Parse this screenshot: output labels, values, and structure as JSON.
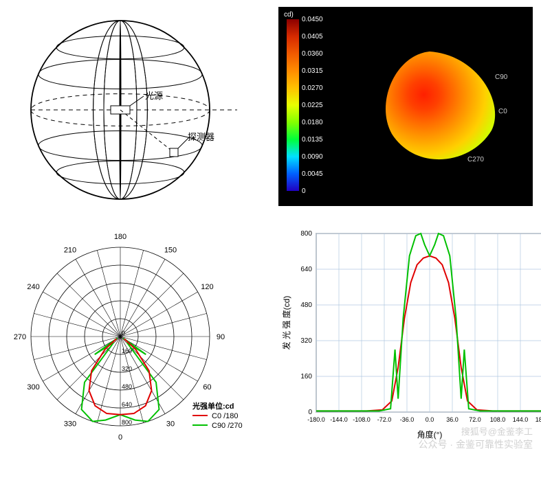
{
  "sphere": {
    "label_source": "光源",
    "label_detector": "探测器",
    "line_color": "#000000",
    "bg": "#ffffff"
  },
  "render3d": {
    "bg": "#000000",
    "scale_title": "cd)",
    "scale_values": [
      "0.0450",
      "0.0405",
      "0.0360",
      "0.0315",
      "0.0270",
      "0.0225",
      "0.0180",
      "0.0135",
      "0.0090",
      "0.0045",
      "0"
    ],
    "scale_colors": [
      "#8b0000",
      "#d62a00",
      "#f05a00",
      "#ff8c00",
      "#ffc100",
      "#e8ff00",
      "#84ff00",
      "#00ff3a",
      "#00e0ff",
      "#0060ff",
      "#2000c0"
    ],
    "lobe_gradient": [
      "#ff2000",
      "#ff4000",
      "#ff7000",
      "#ffa000",
      "#ffd000",
      "#cfff00"
    ],
    "axis_labels": [
      "C90",
      "C0",
      "C270"
    ],
    "axis_label_color": "#cccccc",
    "scale_text_color": "#ffffff"
  },
  "polar": {
    "angle_labels": [
      "180",
      "210",
      "240",
      "270",
      "300",
      "330",
      "0",
      "30",
      "60",
      "90",
      "120",
      "150"
    ],
    "angle_start_deg": 90,
    "radial_labels": [
      "160",
      "320",
      "480",
      "640",
      "800"
    ],
    "radial_max": 800,
    "grid_color": "#000000",
    "legend_title": "光强单位:cd",
    "legend": [
      {
        "label": "C0  /180",
        "color": "#e00000"
      },
      {
        "label": "C90 /270",
        "color": "#00c000"
      }
    ],
    "curve_c0": {
      "color": "#e00000",
      "points": [
        [
          -60,
          40
        ],
        [
          -50,
          180
        ],
        [
          -40,
          400
        ],
        [
          -30,
          560
        ],
        [
          -20,
          660
        ],
        [
          -10,
          700
        ],
        [
          0,
          700
        ],
        [
          10,
          700
        ],
        [
          20,
          660
        ],
        [
          30,
          560
        ],
        [
          40,
          400
        ],
        [
          50,
          180
        ],
        [
          60,
          40
        ]
      ]
    },
    "curve_c90": {
      "color": "#00c000",
      "points": [
        [
          -62,
          30
        ],
        [
          -55,
          280
        ],
        [
          -48,
          80
        ],
        [
          -38,
          520
        ],
        [
          -28,
          740
        ],
        [
          -18,
          800
        ],
        [
          -10,
          760
        ],
        [
          0,
          700
        ],
        [
          10,
          760
        ],
        [
          18,
          800
        ],
        [
          28,
          740
        ],
        [
          38,
          520
        ],
        [
          48,
          80
        ],
        [
          55,
          280
        ],
        [
          62,
          30
        ]
      ]
    }
  },
  "cartesian": {
    "xlabel": "角度(°)",
    "ylabel": "发 光 强 度(cd)",
    "xlim": [
      -180,
      180
    ],
    "xtick_step": 36,
    "ylim": [
      0,
      800
    ],
    "ytick_step": 160,
    "grid_color": "#b0c8e0",
    "axis_color": "#000000",
    "bg": "#ffffff",
    "curves": [
      {
        "color": "#e00000",
        "data": [
          [
            -180,
            5
          ],
          [
            -100,
            5
          ],
          [
            -75,
            10
          ],
          [
            -60,
            50
          ],
          [
            -50,
            200
          ],
          [
            -40,
            420
          ],
          [
            -30,
            580
          ],
          [
            -20,
            660
          ],
          [
            -10,
            690
          ],
          [
            0,
            700
          ],
          [
            10,
            690
          ],
          [
            20,
            660
          ],
          [
            30,
            580
          ],
          [
            40,
            420
          ],
          [
            50,
            200
          ],
          [
            60,
            50
          ],
          [
            75,
            10
          ],
          [
            100,
            5
          ],
          [
            180,
            5
          ]
        ]
      },
      {
        "color": "#00c000",
        "data": [
          [
            -180,
            5
          ],
          [
            -80,
            5
          ],
          [
            -62,
            15
          ],
          [
            -55,
            280
          ],
          [
            -50,
            60
          ],
          [
            -42,
            420
          ],
          [
            -32,
            700
          ],
          [
            -22,
            790
          ],
          [
            -14,
            800
          ],
          [
            -8,
            750
          ],
          [
            0,
            700
          ],
          [
            8,
            750
          ],
          [
            14,
            800
          ],
          [
            22,
            790
          ],
          [
            32,
            700
          ],
          [
            42,
            420
          ],
          [
            50,
            60
          ],
          [
            55,
            280
          ],
          [
            62,
            15
          ],
          [
            80,
            5
          ],
          [
            180,
            5
          ]
        ]
      }
    ]
  },
  "watermarks": {
    "line1": "公众号 · 金鉴可靠性实验室",
    "line2": "搜狐号@金鉴李工"
  }
}
